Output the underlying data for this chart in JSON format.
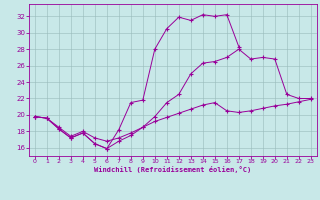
{
  "bg_color": "#c8e8e8",
  "line_color": "#990099",
  "grid_color": "#99bbbb",
  "xlabel": "Windchill (Refroidissement éolien,°C)",
  "xlim": [
    -0.5,
    23.5
  ],
  "ylim": [
    15.0,
    33.5
  ],
  "yticks": [
    16,
    18,
    20,
    22,
    24,
    26,
    28,
    30,
    32
  ],
  "xticks": [
    0,
    1,
    2,
    3,
    4,
    5,
    6,
    7,
    8,
    9,
    10,
    11,
    12,
    13,
    14,
    15,
    16,
    17,
    18,
    19,
    20,
    21,
    22,
    23
  ],
  "curve1_x": [
    0,
    1,
    2,
    3,
    4,
    5,
    6,
    7,
    8,
    9,
    10,
    11,
    12,
    13,
    14,
    15,
    16,
    17
  ],
  "curve1_y": [
    19.8,
    19.6,
    18.3,
    17.2,
    17.8,
    16.5,
    15.9,
    18.2,
    21.5,
    21.8,
    28.0,
    30.5,
    31.9,
    31.5,
    32.2,
    32.0,
    32.2,
    28.3
  ],
  "curve2_x": [
    0,
    1,
    2,
    3,
    4,
    5,
    6,
    7,
    8,
    9,
    10,
    11,
    12,
    13,
    14,
    15,
    16,
    17,
    18,
    19,
    20,
    21,
    22,
    23
  ],
  "curve2_y": [
    19.8,
    19.6,
    18.3,
    17.2,
    17.8,
    16.5,
    15.9,
    16.8,
    17.5,
    18.5,
    19.8,
    21.5,
    22.5,
    25.0,
    26.3,
    26.5,
    27.0,
    28.0,
    26.8,
    27.0,
    26.8,
    22.5,
    22.0,
    22.0
  ],
  "curve3_x": [
    0,
    1,
    2,
    3,
    4,
    5,
    6,
    7,
    8,
    9,
    10,
    11,
    12,
    13,
    14,
    15,
    16,
    17,
    18,
    19,
    20,
    21,
    22,
    23
  ],
  "curve3_y": [
    19.8,
    19.6,
    18.5,
    17.4,
    18.0,
    17.2,
    16.8,
    17.2,
    17.8,
    18.5,
    19.2,
    19.7,
    20.2,
    20.7,
    21.2,
    21.5,
    20.5,
    20.3,
    20.5,
    20.8,
    21.1,
    21.3,
    21.6,
    21.9
  ]
}
